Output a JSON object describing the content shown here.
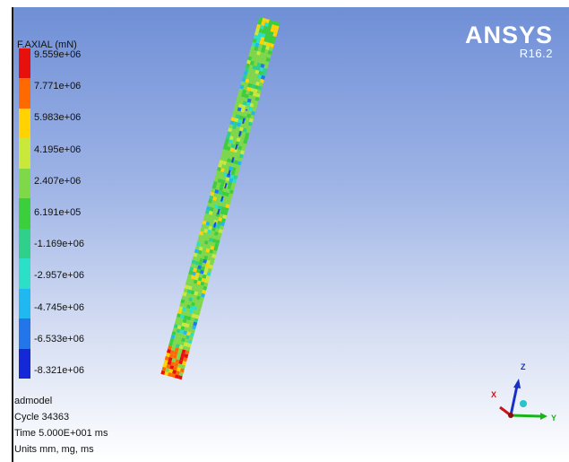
{
  "legend": {
    "title": "F.AXIAL (mN)",
    "values": [
      "9.559e+06",
      "7.771e+06",
      "5.983e+06",
      "4.195e+06",
      "2.407e+06",
      "6.191e+05",
      "-1.169e+06",
      "-2.957e+06",
      "-4.745e+06",
      "-6.533e+06",
      "-8.321e+06"
    ],
    "colors": [
      "#e8100c",
      "#ff6a00",
      "#ffd200",
      "#c9e83a",
      "#7ed848",
      "#3ccf3c",
      "#2fd08a",
      "#2ce0c8",
      "#20b8f0",
      "#2276ea",
      "#1428d8"
    ]
  },
  "logo": {
    "name": "ANSYS",
    "version": "R16.2"
  },
  "info": {
    "model": "admodel",
    "cycle": "Cycle 34363",
    "time": "Time 5.000E+001 ms",
    "units": "Units mm, mg, ms"
  },
  "triad": {
    "x_label": "X",
    "y_label": "Y",
    "z_label": "Z",
    "x_color": "#c8141a",
    "y_color": "#18b418",
    "z_color": "#1a2ec8"
  }
}
